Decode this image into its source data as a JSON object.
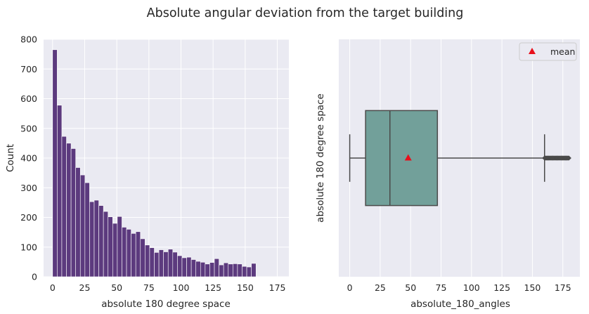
{
  "figure": {
    "title": "Absolute angular deviation from the target building"
  },
  "chart_data": [
    {
      "type": "bar",
      "subtype": "histogram",
      "xlabel": "absolute 180 degree space",
      "ylabel": "Count",
      "xlim": [
        -7,
        184
      ],
      "ylim": [
        0,
        800
      ],
      "xticks": [
        0,
        25,
        50,
        75,
        100,
        125,
        150,
        175
      ],
      "yticks": [
        0,
        100,
        200,
        300,
        400,
        500,
        600,
        700,
        800
      ],
      "bin_start": 0,
      "bin_width": 3.6,
      "values": [
        765,
        578,
        473,
        450,
        432,
        368,
        343,
        317,
        253,
        258,
        240,
        220,
        202,
        180,
        203,
        167,
        160,
        146,
        152,
        128,
        107,
        98,
        82,
        91,
        84,
        93,
        83,
        71,
        64,
        66,
        58,
        52,
        49,
        43,
        48,
        61,
        40,
        47,
        43,
        44,
        43,
        35,
        33,
        45
      ],
      "bar_color": "#5c3a7e",
      "grid": true,
      "background": "#eaeaf2"
    },
    {
      "type": "box",
      "orientation": "horizontal",
      "xlabel": "absolute_180_angles",
      "ylabel": "absolute 180 degree space",
      "xlim": [
        -9,
        189
      ],
      "xticks": [
        0,
        25,
        50,
        75,
        100,
        125,
        150,
        175
      ],
      "whisker_low": 0,
      "q1": 13,
      "median": 33,
      "q3": 72,
      "whisker_high": 160,
      "mean": 48,
      "outlier_range": [
        160,
        180
      ],
      "box_color": "#72a09a",
      "mean_color": "#e8101c",
      "legend": {
        "label": "mean",
        "loc": "upper right"
      },
      "grid": true,
      "background": "#eaeaf2"
    }
  ]
}
